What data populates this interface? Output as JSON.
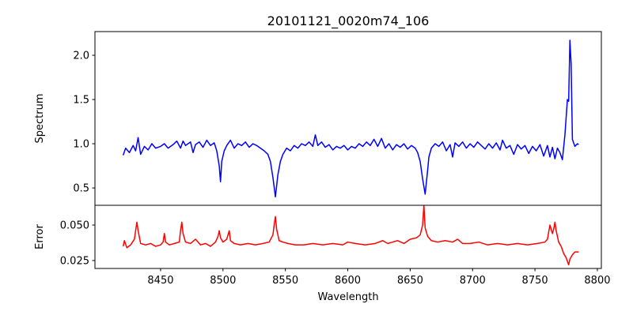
{
  "chart_data": [
    {
      "type": "line",
      "title": "20101121_0020m74_106",
      "xlabel": "",
      "ylabel": "Spectrum",
      "xlim": [
        8397.4,
        8803.2
      ],
      "ylim": [
        0.304,
        2.268
      ],
      "yticks": [
        0.5,
        1.0,
        1.5,
        2.0
      ],
      "ytick_labels": [
        "0.5",
        "1.0",
        "1.5",
        "2.0"
      ],
      "grid": false,
      "series": [
        {
          "name": "Spectrum",
          "color": "#0000ff",
          "x": [
            8420,
            8422,
            8425,
            8428,
            8430,
            8432,
            8434,
            8437,
            8440,
            8443,
            8446,
            8450,
            8453,
            8456,
            8460,
            8463,
            8466,
            8468,
            8470,
            8474,
            8476,
            8478,
            8481,
            8484,
            8487,
            8490,
            8493,
            8495,
            8497,
            8498,
            8499,
            8501,
            8503,
            8506,
            8509,
            8512,
            8515,
            8518,
            8521,
            8524,
            8527,
            8530,
            8533,
            8536,
            8538,
            8540,
            8542,
            8544,
            8546,
            8548,
            8551,
            8554,
            8557,
            8560,
            8563,
            8566,
            8569,
            8572,
            8574,
            8576,
            8579,
            8582,
            8585,
            8588,
            8591,
            8594,
            8597,
            8600,
            8603,
            8606,
            8609,
            8612,
            8615,
            8618,
            8621,
            8624,
            8627,
            8630,
            8633,
            8636,
            8639,
            8642,
            8645,
            8648,
            8651,
            8654,
            8656,
            8658,
            8660,
            8662,
            8664,
            8665,
            8667,
            8670,
            8673,
            8676,
            8679,
            8682,
            8684,
            8686,
            8689,
            8692,
            8695,
            8698,
            8701,
            8704,
            8707,
            8710,
            8713,
            8716,
            8719,
            8722,
            8724,
            8727,
            8730,
            8733,
            8736,
            8739,
            8742,
            8745,
            8748,
            8751,
            8754,
            8757,
            8760,
            8762,
            8764,
            8766,
            8768,
            8770,
            8772,
            8774,
            8776,
            8777,
            8778,
            8779,
            8780,
            8782,
            8784,
            8785
          ],
          "y": [
            0.87,
            0.95,
            0.9,
            0.98,
            0.92,
            1.07,
            0.88,
            0.97,
            0.93,
            1.0,
            0.95,
            0.97,
            1.0,
            0.95,
            0.99,
            1.03,
            0.95,
            1.03,
            0.98,
            1.02,
            0.9,
            0.99,
            1.02,
            0.96,
            1.04,
            0.98,
            1.01,
            0.92,
            0.75,
            0.57,
            0.8,
            0.92,
            0.98,
            1.04,
            0.95,
            1.0,
            0.98,
            1.02,
            0.96,
            1.0,
            0.98,
            0.95,
            0.92,
            0.88,
            0.8,
            0.62,
            0.4,
            0.65,
            0.8,
            0.88,
            0.95,
            0.92,
            0.98,
            0.95,
            1.0,
            0.98,
            1.02,
            0.97,
            1.1,
            0.98,
            1.02,
            0.96,
            0.99,
            0.93,
            0.97,
            0.95,
            0.98,
            0.93,
            0.97,
            0.95,
            1.0,
            0.97,
            1.02,
            0.98,
            1.05,
            0.97,
            1.06,
            0.95,
            1.0,
            0.93,
            0.99,
            0.96,
            1.0,
            0.94,
            0.98,
            0.95,
            0.9,
            0.8,
            0.6,
            0.43,
            0.7,
            0.85,
            0.95,
            1.0,
            0.97,
            1.02,
            0.92,
            0.99,
            0.85,
            1.01,
            0.97,
            1.02,
            0.95,
            1.0,
            0.96,
            1.02,
            0.98,
            0.94,
            1.0,
            0.95,
            1.01,
            0.93,
            1.04,
            0.95,
            0.98,
            0.88,
            0.99,
            0.94,
            0.98,
            0.89,
            0.97,
            0.92,
            0.99,
            0.86,
            0.98,
            0.85,
            0.96,
            0.83,
            0.95,
            0.9,
            0.82,
            1.1,
            1.5,
            1.48,
            2.17,
            1.9,
            1.05,
            0.97,
            1.0,
            0.99
          ]
        }
      ]
    },
    {
      "type": "line",
      "xlabel": "Wavelength",
      "ylabel": "Error",
      "xlim": [
        8397.4,
        8803.2
      ],
      "ylim": [
        0.0194,
        0.0639
      ],
      "xticks": [
        8450,
        8500,
        8550,
        8600,
        8650,
        8700,
        8750,
        8800
      ],
      "xtick_labels": [
        "8450",
        "8500",
        "8550",
        "8600",
        "8650",
        "8700",
        "8750",
        "8800"
      ],
      "yticks": [
        0.025,
        0.05
      ],
      "ytick_labels": [
        "0.025",
        "0.050"
      ],
      "grid": false,
      "series": [
        {
          "name": "Error",
          "color": "#ff0000",
          "x": [
            8420,
            8421,
            8423,
            8426,
            8429,
            8430,
            8431,
            8432,
            8434,
            8438,
            8442,
            8446,
            8450,
            8452,
            8453,
            8454,
            8457,
            8461,
            8465,
            8466,
            8467,
            8468,
            8470,
            8474,
            8478,
            8482,
            8486,
            8490,
            8494,
            8496,
            8497,
            8498,
            8500,
            8503,
            8505,
            8506,
            8509,
            8514,
            8520,
            8526,
            8532,
            8537,
            8540,
            8541,
            8542,
            8543,
            8545,
            8548,
            8552,
            8558,
            8565,
            8572,
            8580,
            8588,
            8596,
            8600,
            8606,
            8614,
            8622,
            8628,
            8632,
            8636,
            8640,
            8645,
            8650,
            8655,
            8658,
            8660,
            8661,
            8662,
            8664,
            8667,
            8672,
            8678,
            8684,
            8688,
            8692,
            8698,
            8705,
            8712,
            8720,
            8728,
            8736,
            8744,
            8752,
            8758,
            8760,
            8762,
            8764,
            8765,
            8766,
            8767,
            8769,
            8771,
            8773,
            8775,
            8777,
            8778,
            8780,
            8782,
            8785
          ],
          "y": [
            0.035,
            0.039,
            0.034,
            0.036,
            0.04,
            0.046,
            0.052,
            0.046,
            0.037,
            0.036,
            0.037,
            0.035,
            0.036,
            0.038,
            0.044,
            0.038,
            0.036,
            0.037,
            0.038,
            0.046,
            0.052,
            0.044,
            0.038,
            0.037,
            0.04,
            0.036,
            0.037,
            0.035,
            0.038,
            0.042,
            0.046,
            0.041,
            0.038,
            0.04,
            0.046,
            0.039,
            0.037,
            0.036,
            0.037,
            0.036,
            0.037,
            0.038,
            0.043,
            0.05,
            0.056,
            0.047,
            0.039,
            0.038,
            0.037,
            0.036,
            0.036,
            0.037,
            0.036,
            0.037,
            0.036,
            0.038,
            0.037,
            0.036,
            0.037,
            0.039,
            0.037,
            0.038,
            0.039,
            0.037,
            0.04,
            0.041,
            0.043,
            0.05,
            0.064,
            0.048,
            0.042,
            0.039,
            0.038,
            0.039,
            0.038,
            0.04,
            0.037,
            0.037,
            0.038,
            0.036,
            0.037,
            0.036,
            0.037,
            0.036,
            0.037,
            0.038,
            0.04,
            0.05,
            0.044,
            0.047,
            0.052,
            0.046,
            0.038,
            0.035,
            0.03,
            0.027,
            0.022,
            0.026,
            0.029,
            0.031,
            0.031
          ]
        }
      ]
    }
  ]
}
